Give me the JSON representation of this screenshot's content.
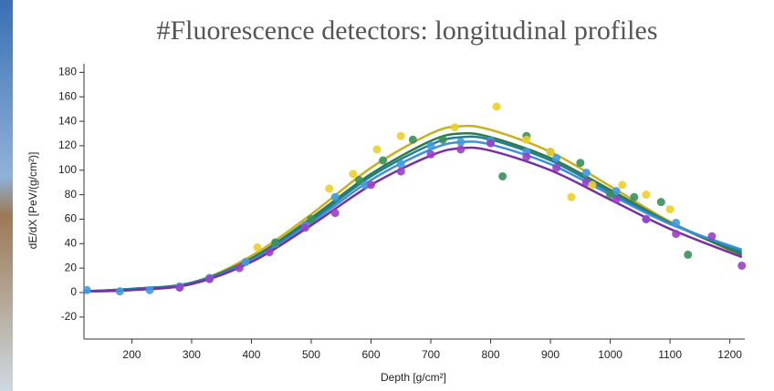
{
  "chart_data": {
    "type": "scatter",
    "title": "#Fluorescence detectors: longitudinal profiles",
    "x_label": "Depth [g/cm²]",
    "y_label": "dE/dX [PeV/(g/cm²)]",
    "xlim": [
      120,
      1225
    ],
    "ylim": [
      -38,
      187
    ],
    "xticks": [
      200,
      300,
      400,
      500,
      600,
      700,
      800,
      900,
      1000,
      1100,
      1200
    ],
    "yticks": [
      -20,
      0,
      20,
      40,
      60,
      80,
      100,
      120,
      140,
      160,
      180
    ],
    "points": [
      {
        "color": "#3f9be0",
        "x": [
          125,
          180,
          230,
          280,
          330,
          390,
          440,
          490,
          540,
          590,
          650,
          700,
          750,
          800,
          860,
          910,
          960,
          1010,
          1060,
          1110
        ],
        "values": [
          2,
          1,
          2,
          5,
          12,
          25,
          40,
          55,
          78,
          88,
          105,
          120,
          123,
          124,
          115,
          110,
          98,
          83,
          60,
          57
        ]
      },
      {
        "color": "#9b3fc8",
        "x": [
          280,
          330,
          380,
          430,
          490,
          540,
          600,
          650,
          700,
          750,
          800,
          860,
          910,
          960,
          1010,
          1060,
          1110,
          1170,
          1220
        ],
        "values": [
          4,
          11,
          20,
          33,
          53,
          65,
          88,
          99,
          113,
          117,
          122,
          111,
          102,
          90,
          76,
          60,
          48,
          46,
          22
        ]
      },
      {
        "color": "#3a8f5a",
        "x": [
          440,
          500,
          580,
          620,
          670,
          720,
          820,
          860,
          900,
          950,
          1000,
          1040,
          1085,
          1130
        ],
        "values": [
          41,
          60,
          92,
          108,
          125,
          125,
          95,
          128,
          115,
          106,
          80,
          78,
          74,
          31
        ]
      },
      {
        "color": "#ecd02a",
        "x": [
          410,
          530,
          570,
          610,
          650,
          740,
          810,
          860,
          900,
          935,
          970,
          1020,
          1060,
          1100
        ],
        "values": [
          37,
          85,
          97,
          117,
          128,
          135,
          152,
          125,
          115,
          78,
          88,
          88,
          80,
          68
        ]
      }
    ],
    "fits": [
      {
        "color": "#c8b020",
        "x": [
          120,
          200,
          300,
          400,
          500,
          600,
          700,
          750,
          800,
          900,
          1000,
          1100,
          1220
        ],
        "values": [
          1,
          3,
          8,
          30,
          64,
          102,
          130,
          136,
          133,
          115,
          87,
          58,
          30
        ]
      },
      {
        "color": "#2e7a4a",
        "x": [
          120,
          200,
          300,
          400,
          500,
          600,
          700,
          750,
          800,
          900,
          1000,
          1100,
          1220
        ],
        "values": [
          1,
          3,
          8,
          28,
          61,
          97,
          124,
          130,
          127,
          110,
          84,
          57,
          31
        ]
      },
      {
        "color": "#1f7f94",
        "x": [
          120,
          200,
          300,
          400,
          500,
          600,
          700,
          750,
          800,
          900,
          1000,
          1100,
          1220
        ],
        "values": [
          1,
          3,
          8,
          27,
          59,
          95,
          121,
          127,
          125,
          108,
          82,
          57,
          33
        ]
      },
      {
        "color": "#3d8fd8",
        "x": [
          120,
          200,
          300,
          400,
          500,
          600,
          700,
          750,
          800,
          900,
          1000,
          1100,
          1220
        ],
        "values": [
          1,
          2,
          7,
          26,
          57,
          92,
          117,
          123,
          121,
          105,
          80,
          56,
          35
        ]
      },
      {
        "color": "#7a2fa0",
        "x": [
          120,
          200,
          300,
          400,
          500,
          600,
          700,
          750,
          800,
          900,
          1000,
          1100,
          1220
        ],
        "values": [
          1,
          2,
          7,
          25,
          55,
          88,
          112,
          118,
          116,
          100,
          76,
          52,
          29
        ]
      }
    ]
  }
}
